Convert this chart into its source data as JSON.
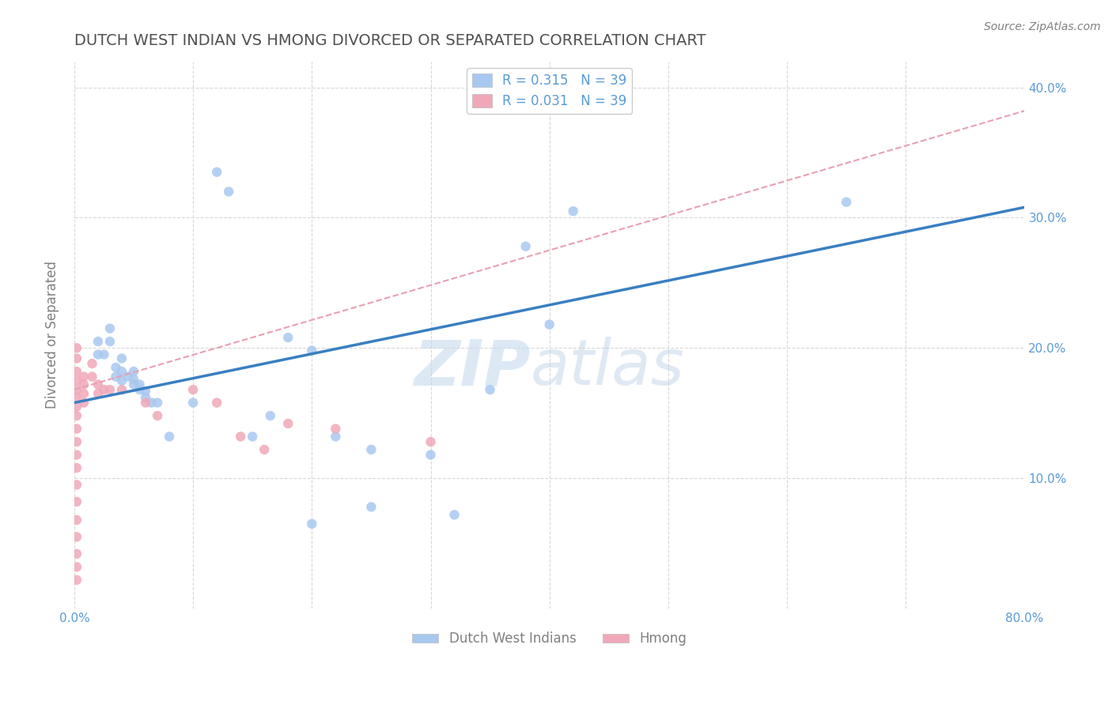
{
  "title": "DUTCH WEST INDIAN VS HMONG DIVORCED OR SEPARATED CORRELATION CHART",
  "source_text": "Source: ZipAtlas.com",
  "ylabel": "Divorced or Separated",
  "xlim": [
    0.0,
    0.8
  ],
  "ylim": [
    0.0,
    0.42
  ],
  "xticks": [
    0.0,
    0.1,
    0.2,
    0.3,
    0.4,
    0.5,
    0.6,
    0.7,
    0.8
  ],
  "yticks": [
    0.0,
    0.1,
    0.2,
    0.3,
    0.4
  ],
  "xticklabels": [
    "0.0%",
    "",
    "",
    "",
    "",
    "",
    "",
    "",
    "80.0%"
  ],
  "yticklabels_right": [
    "",
    "10.0%",
    "20.0%",
    "30.0%",
    "40.0%"
  ],
  "dutch_color": "#a8c8f0",
  "hmong_color": "#f0a8b8",
  "dutch_line_color": "#3a7fc1",
  "hmong_line_color": "#e8a0b0",
  "watermark": "ZIPatlas",
  "dutch_points": [
    [
      0.02,
      0.195
    ],
    [
      0.02,
      0.205
    ],
    [
      0.025,
      0.195
    ],
    [
      0.03,
      0.205
    ],
    [
      0.03,
      0.215
    ],
    [
      0.035,
      0.178
    ],
    [
      0.035,
      0.185
    ],
    [
      0.04,
      0.182
    ],
    [
      0.04,
      0.192
    ],
    [
      0.04,
      0.175
    ],
    [
      0.045,
      0.178
    ],
    [
      0.05,
      0.172
    ],
    [
      0.05,
      0.182
    ],
    [
      0.05,
      0.176
    ],
    [
      0.055,
      0.168
    ],
    [
      0.055,
      0.172
    ],
    [
      0.06,
      0.167
    ],
    [
      0.06,
      0.162
    ],
    [
      0.065,
      0.158
    ],
    [
      0.07,
      0.158
    ],
    [
      0.08,
      0.132
    ],
    [
      0.1,
      0.158
    ],
    [
      0.12,
      0.335
    ],
    [
      0.13,
      0.32
    ],
    [
      0.15,
      0.132
    ],
    [
      0.165,
      0.148
    ],
    [
      0.18,
      0.208
    ],
    [
      0.2,
      0.198
    ],
    [
      0.22,
      0.132
    ],
    [
      0.25,
      0.122
    ],
    [
      0.3,
      0.118
    ],
    [
      0.35,
      0.168
    ],
    [
      0.38,
      0.278
    ],
    [
      0.4,
      0.218
    ],
    [
      0.42,
      0.305
    ],
    [
      0.65,
      0.312
    ],
    [
      0.25,
      0.078
    ],
    [
      0.32,
      0.072
    ],
    [
      0.2,
      0.065
    ]
  ],
  "hmong_points": [
    [
      0.002,
      0.175
    ],
    [
      0.002,
      0.182
    ],
    [
      0.002,
      0.168
    ],
    [
      0.002,
      0.162
    ],
    [
      0.002,
      0.155
    ],
    [
      0.002,
      0.148
    ],
    [
      0.002,
      0.138
    ],
    [
      0.002,
      0.128
    ],
    [
      0.002,
      0.118
    ],
    [
      0.002,
      0.108
    ],
    [
      0.002,
      0.095
    ],
    [
      0.002,
      0.082
    ],
    [
      0.002,
      0.068
    ],
    [
      0.002,
      0.055
    ],
    [
      0.002,
      0.042
    ],
    [
      0.002,
      0.032
    ],
    [
      0.002,
      0.022
    ],
    [
      0.008,
      0.178
    ],
    [
      0.008,
      0.172
    ],
    [
      0.008,
      0.165
    ],
    [
      0.008,
      0.158
    ],
    [
      0.015,
      0.188
    ],
    [
      0.015,
      0.178
    ],
    [
      0.02,
      0.172
    ],
    [
      0.02,
      0.165
    ],
    [
      0.025,
      0.168
    ],
    [
      0.03,
      0.168
    ],
    [
      0.04,
      0.168
    ],
    [
      0.06,
      0.158
    ],
    [
      0.07,
      0.148
    ],
    [
      0.1,
      0.168
    ],
    [
      0.12,
      0.158
    ],
    [
      0.14,
      0.132
    ],
    [
      0.16,
      0.122
    ],
    [
      0.18,
      0.142
    ],
    [
      0.22,
      0.138
    ],
    [
      0.3,
      0.128
    ],
    [
      0.002,
      0.192
    ],
    [
      0.002,
      0.2
    ]
  ],
  "dutch_trendline": [
    [
      0.0,
      0.158
    ],
    [
      0.8,
      0.308
    ]
  ],
  "hmong_trendline": [
    [
      0.0,
      0.168
    ],
    [
      0.8,
      0.382
    ]
  ],
  "background_color": "#ffffff",
  "grid_color": "#d8d8d8",
  "title_color": "#505050",
  "tick_label_color": "#5b9bd5",
  "ylabel_color": "#808080"
}
